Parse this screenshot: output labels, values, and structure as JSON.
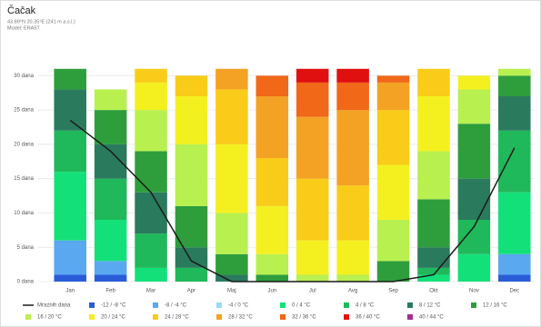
{
  "chart_data": {
    "type": "bar",
    "stacked": true,
    "title": "Čačak",
    "subtitle": [
      "43.89°N 20.35°E (241 m a.s.l.)",
      "Model: ERA5T"
    ],
    "categories": [
      "Jan",
      "Feb",
      "Mar",
      "Apr",
      "Maj",
      "Jun",
      "Jul",
      "Avg",
      "Sep",
      "Okt",
      "Nov",
      "Dec"
    ],
    "ylim": [
      0,
      31.5
    ],
    "yticks": [
      {
        "value": 0,
        "label": "0 dana"
      },
      {
        "value": 5,
        "label": "5 dana"
      },
      {
        "value": 10,
        "label": "10 dana"
      },
      {
        "value": 15,
        "label": "15 dana"
      },
      {
        "value": 20,
        "label": "20 dana"
      },
      {
        "value": 25,
        "label": "25 dana"
      },
      {
        "value": 30,
        "label": "30 dana"
      }
    ],
    "grid": true,
    "series": [
      {
        "name": "Mraznih dana",
        "type": "line",
        "color": "#1a1a1a",
        "values": [
          23.5,
          19,
          13,
          3,
          0,
          0,
          0,
          0,
          0,
          1,
          8,
          19.5
        ]
      },
      {
        "name": "-12 / -8 °C",
        "color": "#2a5cd8",
        "values": [
          1,
          1,
          0,
          0,
          0,
          0,
          0,
          0,
          0,
          0,
          0,
          1
        ]
      },
      {
        "name": "-8 / -4 °C",
        "color": "#5aa8f0",
        "values": [
          5,
          2,
          0,
          0,
          0,
          0,
          0,
          0,
          0,
          0,
          0,
          3
        ]
      },
      {
        "name": "-4 / 0 °C",
        "color": "#9ad8f4",
        "values": [
          0,
          0,
          0,
          0,
          0,
          0,
          0,
          0,
          0,
          0,
          0,
          0
        ]
      },
      {
        "name": "0 / 4 °C",
        "color": "#14e07a",
        "values": [
          10,
          6,
          2,
          0,
          0,
          0,
          0,
          0,
          0,
          1,
          4,
          9
        ]
      },
      {
        "name": "4 / 8 °C",
        "color": "#1fb85a",
        "values": [
          6,
          6,
          5,
          2,
          0,
          0,
          0,
          0,
          0,
          1,
          5,
          9
        ]
      },
      {
        "name": "8 / 12 °C",
        "color": "#2a7a5e",
        "values": [
          6,
          5,
          6,
          3,
          1,
          0,
          0,
          0,
          0,
          3,
          6,
          5
        ]
      },
      {
        "name": "12 / 16 °C",
        "color": "#2e9e3c",
        "values": [
          3,
          5,
          6,
          6,
          3,
          1,
          0,
          0,
          3,
          7,
          8,
          3
        ]
      },
      {
        "name": "16 / 20 °C",
        "color": "#b8f050",
        "values": [
          0,
          3,
          6,
          9,
          6,
          3,
          1,
          1,
          6,
          7,
          5,
          1
        ]
      },
      {
        "name": "20 / 24 °C",
        "color": "#f4f020",
        "values": [
          0,
          0,
          4,
          7,
          10,
          7,
          5,
          5,
          8,
          8,
          2,
          0
        ]
      },
      {
        "name": "24 / 28 °C",
        "color": "#f8cc18",
        "values": [
          0,
          0,
          2,
          3,
          8,
          7,
          9,
          8,
          8,
          4,
          0,
          0
        ]
      },
      {
        "name": "28 / 32 °C",
        "color": "#f4a224",
        "values": [
          0,
          0,
          0,
          0,
          3,
          9,
          9,
          11,
          4,
          0,
          0,
          0
        ]
      },
      {
        "name": "32 / 36 °C",
        "color": "#f06818",
        "values": [
          0,
          0,
          0,
          0,
          0,
          3,
          5,
          4,
          1,
          0,
          0,
          0
        ]
      },
      {
        "name": "36 / 40 °C",
        "color": "#e01010",
        "values": [
          0,
          0,
          0,
          0,
          0,
          0,
          2,
          2,
          0,
          0,
          0,
          0
        ]
      },
      {
        "name": "40 / 44 °C",
        "color": "#a03090",
        "values": [
          0,
          0,
          0,
          0,
          0,
          0,
          0,
          0,
          0,
          0,
          0,
          0
        ]
      }
    ]
  }
}
